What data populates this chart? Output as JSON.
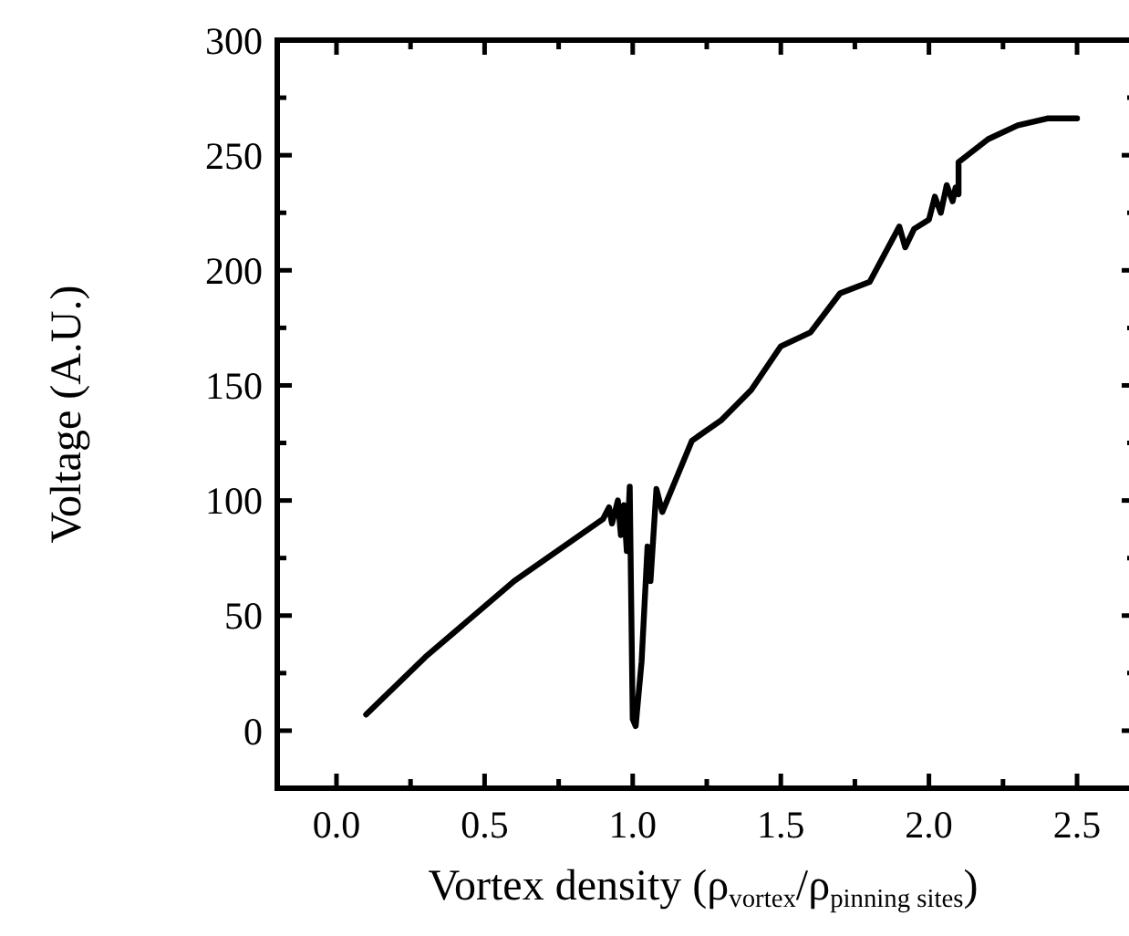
{
  "chart_data": {
    "type": "line",
    "xlabel": "Vortex density (ρ$_{vortex}$/ρ$_{pinning sites}$)",
    "ylabel": "Voltage (A.U.)",
    "xlim": [
      -0.2,
      2.7
    ],
    "ylim": [
      -25,
      300
    ],
    "xticks": [
      {
        "value": 0,
        "label": "0.0"
      },
      {
        "value": 0.25,
        "label": null
      },
      {
        "value": 0.5,
        "label": "0.5"
      },
      {
        "value": 0.75,
        "label": null
      },
      {
        "value": 1,
        "label": "1.0"
      },
      {
        "value": 1.25,
        "label": null
      },
      {
        "value": 1.5,
        "label": "1.5"
      },
      {
        "value": 1.75,
        "label": null
      },
      {
        "value": 2,
        "label": "2.0"
      },
      {
        "value": 2.25,
        "label": null
      },
      {
        "value": 2.5,
        "label": "2.5"
      }
    ],
    "yticks": [
      0,
      {
        "value": 25,
        "label": null
      },
      50,
      {
        "value": 75,
        "label": null
      },
      100,
      {
        "value": 125,
        "label": null
      },
      150,
      {
        "value": 175,
        "label": null
      },
      200,
      {
        "value": 225,
        "label": null
      },
      250,
      {
        "value": 275,
        "label": null
      },
      300
    ],
    "grid": false,
    "marker": "none",
    "line_style": "solid",
    "series": [
      {
        "color": "#000000",
        "x": [
          0.1,
          0.3,
          0.6,
          0.9,
          0.92,
          0.93,
          0.95,
          0.96,
          0.97,
          0.98,
          0.99,
          1.0,
          1.01,
          1.03,
          1.05,
          1.06,
          1.08,
          1.1,
          1.2,
          1.3,
          1.4,
          1.5,
          1.6,
          1.7,
          1.8,
          1.9,
          1.92,
          1.95,
          2.0,
          2.02,
          2.04,
          2.06,
          2.08,
          2.09,
          2.1,
          2.1,
          2.2,
          2.3,
          2.4,
          2.5
        ],
        "values": [
          7,
          32,
          65,
          92,
          97,
          90,
          100,
          85,
          98,
          78,
          106,
          5,
          2,
          30,
          80,
          65,
          105,
          95,
          126,
          135,
          148,
          167,
          173,
          190,
          195,
          219,
          210,
          218,
          222,
          232,
          225,
          237,
          230,
          236,
          233,
          247,
          257,
          263,
          266,
          266
        ]
      }
    ]
  }
}
